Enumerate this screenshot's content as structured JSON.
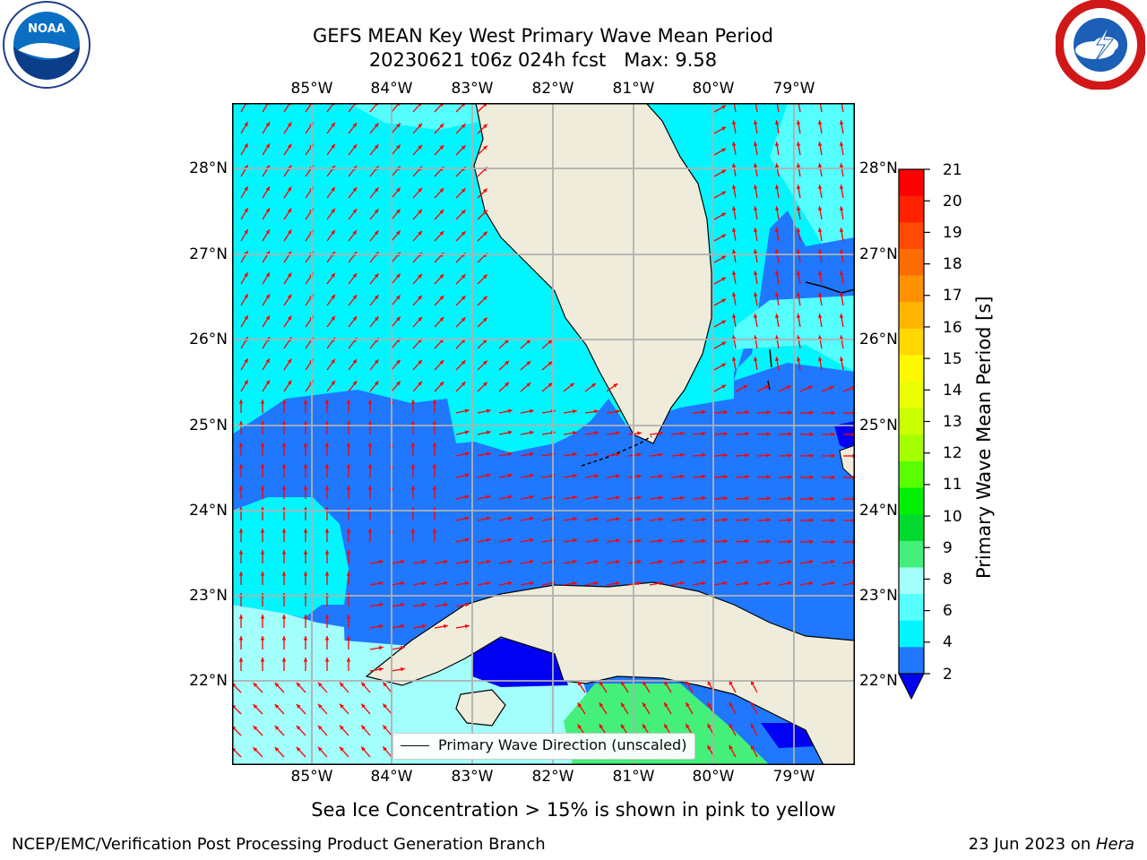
{
  "header": {
    "title_line1": "GEFS MEAN Key West Primary Wave Mean Period",
    "title_line2": "20230621 t06z 024h fcst   Max: 9.58"
  },
  "logos": {
    "left": "NOAA",
    "right": "NATIONAL WEATHER SERVICE"
  },
  "map": {
    "lon_ticks": [
      "85°W",
      "84°W",
      "83°W",
      "82°W",
      "81°W",
      "80°W",
      "79°W"
    ],
    "lat_ticks": [
      "28°N",
      "27°N",
      "26°N",
      "25°N",
      "24°N",
      "23°N",
      "22°N"
    ],
    "legend_label": "Primary Wave Direction (unscaled)",
    "colors": {
      "land": "#efecdc",
      "band_2_4": "#1f78ff",
      "band_4_6": "#00f6ff",
      "band_6_8": "#56ffff",
      "band_8_9": "#a2fffc",
      "band_9_10": "#45f07a",
      "below_2": "#0000f2",
      "arrow": "#ff0000",
      "grid": "#b0b0b0"
    }
  },
  "colorbar": {
    "label": "Primary Wave Mean Period [s]",
    "ticks": [
      "21",
      "20",
      "19",
      "18",
      "17",
      "16",
      "15",
      "14",
      "13",
      "12",
      "11",
      "10",
      "9",
      "8",
      "6",
      "4",
      "2"
    ],
    "band_colors": [
      "#ff0000",
      "#ff2200",
      "#ff4a00",
      "#ff6d00",
      "#ff9100",
      "#ffb400",
      "#ffd800",
      "#fff900",
      "#ebff00",
      "#caff00",
      "#a5ff00",
      "#59ff00",
      "#00f000",
      "#00d92e",
      "#45f07a",
      "#a2fffc",
      "#56ffff",
      "#00f6ff",
      "#1f78ff"
    ],
    "under_color": "#0000f2"
  },
  "footer": {
    "note": "Sea Ice Concentration > 15% is shown in pink to yellow",
    "left": "NCEP/EMC/Verification Post Processing Product Generation Branch",
    "right_prefix": "23 Jun 2023 on ",
    "right_host": "Hera"
  }
}
